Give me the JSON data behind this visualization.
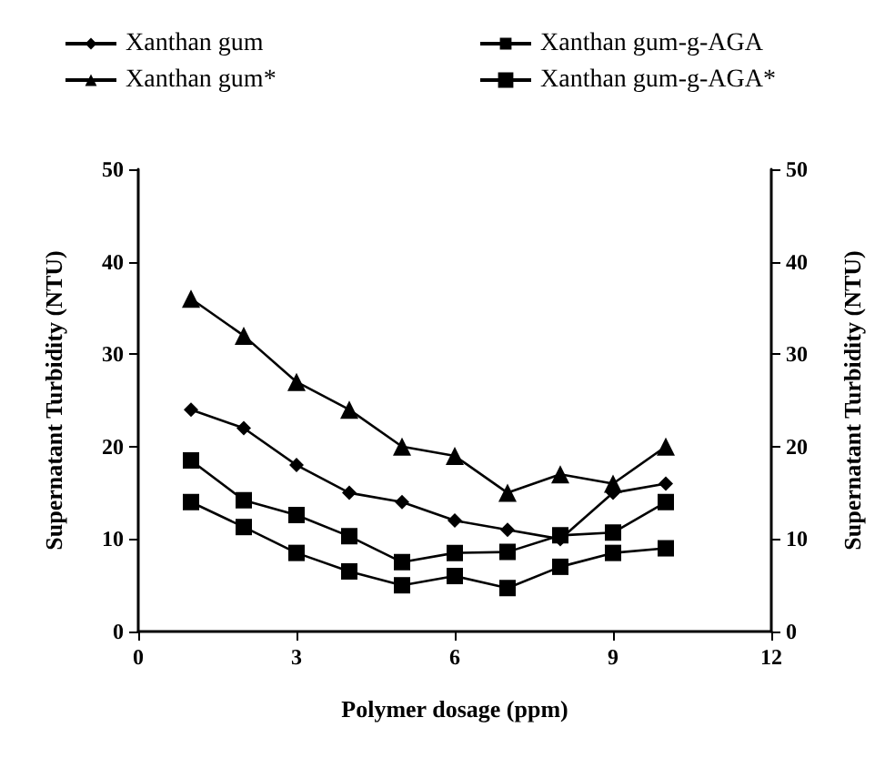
{
  "chart_data": {
    "type": "line",
    "xlabel": "Polymer dosage (ppm)",
    "ylabel": "Supernatant Turbidity (NTU)",
    "y2label": "Supernatant Turbidity (NTU)",
    "x": [
      1,
      2,
      3,
      4,
      5,
      6,
      7,
      8,
      9,
      10
    ],
    "series": [
      {
        "name": "Xanthan gum",
        "color": "#000000",
        "marker": "diamond",
        "values": [
          24,
          22,
          18,
          15,
          14,
          12,
          11,
          10,
          15,
          16
        ]
      },
      {
        "name": "Xanthan gum-g-AGA",
        "color": "#000000",
        "marker": "square",
        "values": [
          14,
          11.3,
          8.5,
          6.5,
          5,
          6,
          4.7,
          7,
          8.5,
          9
        ]
      },
      {
        "name": "Xanthan gum*",
        "color": "#000000",
        "marker": "triangle",
        "values": [
          36,
          32,
          27,
          24,
          20,
          19,
          15,
          17,
          16,
          20
        ]
      },
      {
        "name": "Xanthan gum-g-AGA*",
        "color": "#000000",
        "marker": "cross",
        "values": [
          18.5,
          14.2,
          12.6,
          10.3,
          7.5,
          8.5,
          8.6,
          10.4,
          10.7,
          14
        ]
      }
    ],
    "xlim": [
      0,
      12
    ],
    "xticks": [
      0,
      3,
      6,
      9,
      12
    ],
    "ylim": [
      0,
      50
    ],
    "yticks": [
      0,
      10,
      20,
      30,
      40,
      50
    ],
    "y2lim": [
      0,
      50
    ],
    "y2ticks": [
      0,
      10,
      20,
      30,
      40,
      50
    ],
    "grid": false,
    "legend": "top",
    "line_style": "solid"
  }
}
